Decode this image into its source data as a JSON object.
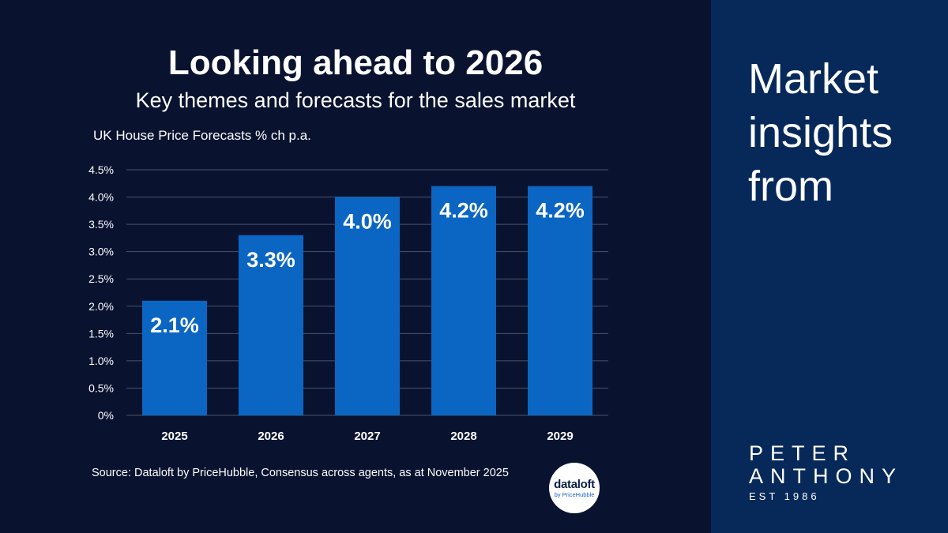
{
  "header": {
    "title": "Looking ahead to 2026",
    "subtitle": "Key themes and forecasts for the sales market"
  },
  "chart_data": {
    "type": "bar",
    "title": "UK House Price Forecasts % ch p.a.",
    "categories": [
      "2025",
      "2026",
      "2027",
      "2028",
      "2029"
    ],
    "values": [
      2.1,
      3.3,
      4.0,
      4.2,
      4.2
    ],
    "value_labels": [
      "2.1%",
      "3.3%",
      "4.0%",
      "4.2%",
      "4.2%"
    ],
    "y_ticks": [
      "0%",
      "0.5%",
      "1.0%",
      "1.5%",
      "2.0%",
      "2.5%",
      "3.0%",
      "3.5%",
      "4.0%",
      "4.5%"
    ],
    "ylim": [
      0,
      4.5
    ],
    "grid": true,
    "bar_color": "#0b66c3"
  },
  "footer": {
    "source": "Source: Dataloft by PriceHubble, Consensus across agents, as at November 2025"
  },
  "badge": {
    "main": "dataloft",
    "sub": "by PriceHubble"
  },
  "sidebar": {
    "headline": "Market insights from",
    "brand_line1": "PETER",
    "brand_line2": "ANTHONY",
    "brand_line3": "EST 1986"
  },
  "colors": {
    "background": "#091330",
    "sidebar": "#07295a",
    "bar": "#0b66c3",
    "grid": "#4a5368",
    "text": "#ffffff"
  }
}
